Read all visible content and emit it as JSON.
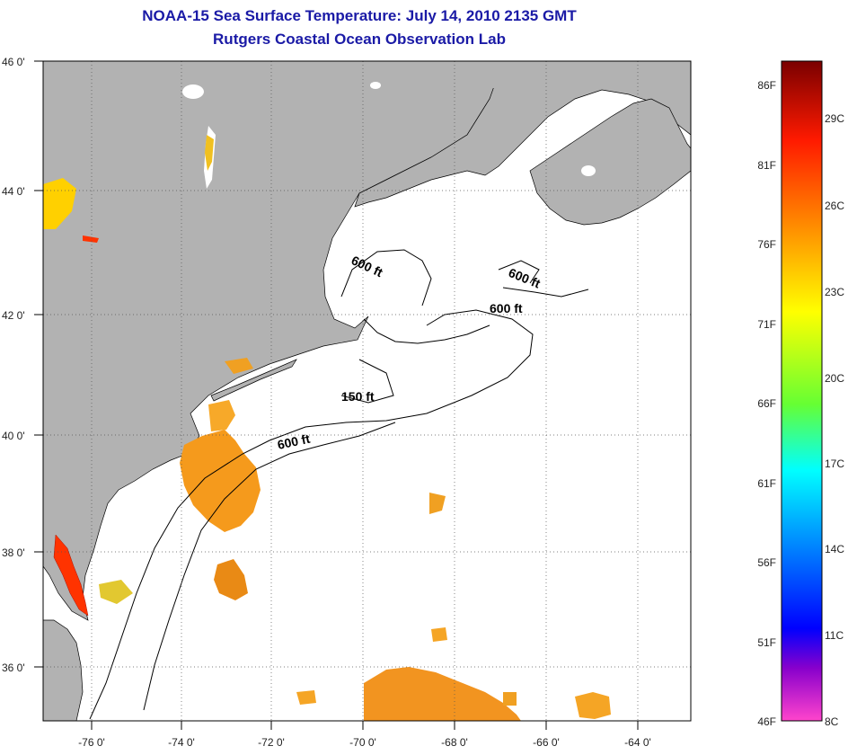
{
  "title": "NOAA-15 Sea Surface Temperature:  July 14, 2010 2135 GMT",
  "subtitle": "Rutgers Coastal Ocean Observation Lab",
  "map": {
    "lat_range": [
      35,
      46
    ],
    "lon_range": [
      -77,
      -63
    ],
    "lat_labels": [
      "46 0'",
      "44 0'",
      "42 0'",
      "40 0'",
      "38 0'",
      "36 0'"
    ],
    "lon_labels": [
      "-76 0'",
      "-74 0'",
      "-72 0'",
      "-70 0'",
      "-68 0'",
      "-66 0'",
      "-64 0'"
    ],
    "grid": true,
    "land_color": "#b2b2b2",
    "contour_labels": [
      "600 ft",
      "600 ft",
      "600 ft",
      "150 ft",
      "600 ft"
    ]
  },
  "colorbar": {
    "fahrenheit_labels": [
      "86F",
      "81F",
      "76F",
      "71F",
      "66F",
      "61F",
      "56F",
      "51F",
      "46F"
    ],
    "celsius_labels": [
      "29C",
      "26C",
      "23C",
      "20C",
      "17C",
      "14C",
      "11C",
      "8C"
    ],
    "colors": [
      "#7a0000",
      "#ff1a00",
      "#ff8c00",
      "#ffff00",
      "#66ff33",
      "#00ffff",
      "#0080ff",
      "#0000ff",
      "#8800cc",
      "#ff44cc"
    ]
  }
}
